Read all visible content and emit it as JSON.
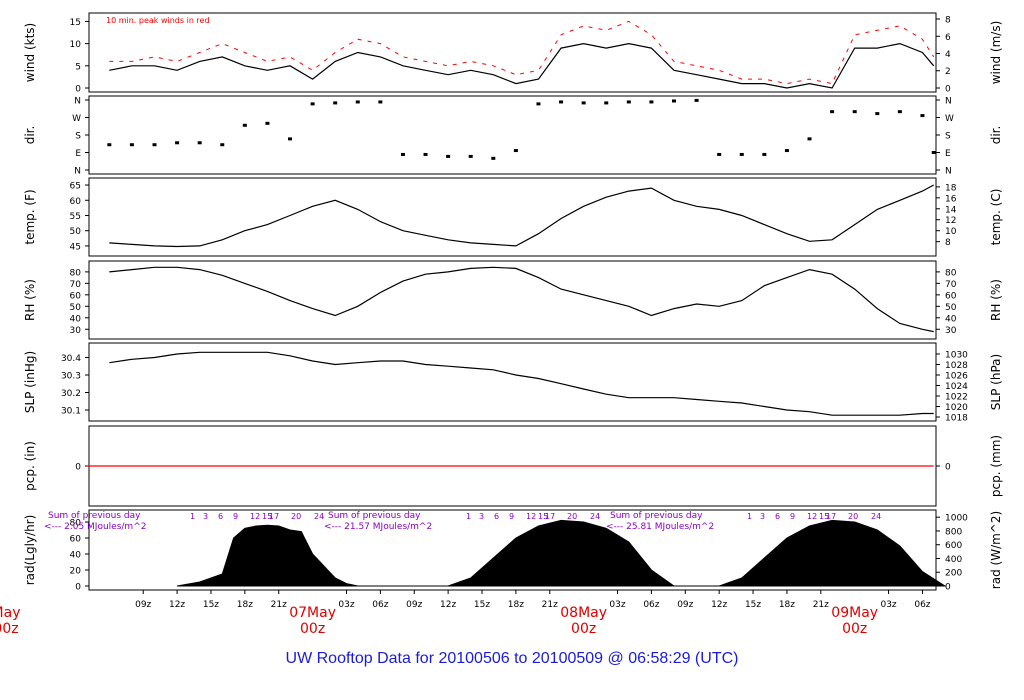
{
  "colors": {
    "axis": "#000000",
    "peak": "#ff0000",
    "pcp_line": "#ff0000",
    "annotation": "#8a00c8",
    "date_label": "#e00000",
    "title": "#1b1bd8"
  },
  "footer_title": "UW Rooftop Data for 20100506  to  20100509 @ 06:58:29  (UTC)",
  "chart_data": [
    {
      "type": "line",
      "ylabel": "wind (kts)",
      "ylabel_right": "wind (m/s)",
      "ylim": [
        0,
        16
      ],
      "yticks": [
        0,
        5,
        10,
        15
      ],
      "yticks_right": [
        {
          "label": "0",
          "value": 0
        },
        {
          "label": "2",
          "value": 3.89
        },
        {
          "label": "4",
          "value": 7.78
        },
        {
          "label": "6",
          "value": 11.66
        },
        {
          "label": "8",
          "value": 15.55
        }
      ],
      "annotation": "10 min. peak winds in red",
      "x_hours": [
        6,
        8,
        10,
        12,
        14,
        16,
        18,
        20,
        22,
        24,
        26,
        28,
        30,
        32,
        34,
        36,
        38,
        40,
        42,
        44,
        46,
        48,
        50,
        52,
        54,
        56,
        58,
        60,
        62,
        64,
        66,
        68,
        70,
        72,
        74,
        76,
        78,
        79
      ],
      "series": [
        {
          "values": [
            4,
            5,
            5,
            4,
            6,
            7,
            5,
            4,
            5,
            2,
            6,
            8,
            7,
            5,
            4,
            3,
            4,
            3,
            1,
            2,
            9,
            10,
            9,
            10,
            9,
            4,
            3,
            2,
            1,
            1,
            0,
            1,
            0,
            9,
            9,
            10,
            8,
            5
          ]
        },
        {
          "values": [
            6,
            6,
            7,
            6,
            8,
            10,
            8,
            6,
            7,
            4,
            8,
            11,
            10,
            7,
            6,
            5,
            6,
            5,
            3,
            4,
            12,
            14,
            13,
            15,
            12,
            6,
            5,
            4,
            2,
            2,
            1,
            2,
            1,
            12,
            13,
            14,
            11,
            7
          ]
        }
      ]
    },
    {
      "type": "scatter",
      "ylabel": "dir.",
      "ylabel_right": "dir.",
      "ylim": [
        0,
        360
      ],
      "yticks": [
        {
          "label": "N",
          "value": 0
        },
        {
          "label": "E",
          "value": 90
        },
        {
          "label": "S",
          "value": 180
        },
        {
          "label": "W",
          "value": 270
        },
        {
          "label": "N",
          "value": 360
        }
      ],
      "yticks_right": [
        {
          "label": "N",
          "value": 0
        },
        {
          "label": "E",
          "value": 90
        },
        {
          "label": "S",
          "value": 180
        },
        {
          "label": "W",
          "value": 270
        },
        {
          "label": "N",
          "value": 360
        }
      ],
      "x_hours": [
        6,
        8,
        10,
        12,
        14,
        16,
        18,
        20,
        22,
        24,
        26,
        28,
        30,
        32,
        34,
        36,
        38,
        40,
        42,
        44,
        46,
        48,
        50,
        52,
        54,
        56,
        58,
        60,
        62,
        64,
        66,
        68,
        70,
        72,
        74,
        76,
        78,
        79
      ],
      "series": [
        {
          "values": [
            130,
            130,
            130,
            140,
            140,
            130,
            230,
            240,
            160,
            340,
            345,
            350,
            350,
            80,
            80,
            70,
            70,
            60,
            100,
            340,
            350,
            345,
            345,
            350,
            350,
            355,
            358,
            80,
            80,
            80,
            100,
            160,
            300,
            300,
            290,
            300,
            280,
            90
          ]
        }
      ]
    },
    {
      "type": "line",
      "ylabel": "temp. (F)",
      "ylabel_right": "temp. (C)",
      "ylim": [
        43,
        66
      ],
      "yticks": [
        45,
        50,
        55,
        60,
        65
      ],
      "yticks_right": [
        {
          "label": "8",
          "value": 46.4
        },
        {
          "label": "10",
          "value": 50
        },
        {
          "label": "12",
          "value": 53.6
        },
        {
          "label": "14",
          "value": 57.2
        },
        {
          "label": "16",
          "value": 60.8
        },
        {
          "label": "18",
          "value": 64.4
        }
      ],
      "x_hours": [
        6,
        8,
        10,
        12,
        14,
        16,
        18,
        20,
        22,
        24,
        26,
        28,
        30,
        32,
        34,
        36,
        38,
        40,
        42,
        44,
        46,
        48,
        50,
        52,
        54,
        56,
        58,
        60,
        62,
        64,
        66,
        68,
        70,
        72,
        74,
        76,
        78,
        79
      ],
      "series": [
        {
          "values": [
            46,
            45.5,
            45,
            44.8,
            45,
            47,
            50,
            52,
            55,
            58,
            60,
            57,
            53,
            50,
            48.5,
            47,
            46,
            45.5,
            45,
            49,
            54,
            58,
            61,
            63,
            64,
            60,
            58,
            57,
            55,
            52,
            49,
            46.5,
            47,
            52,
            57,
            60,
            63,
            65
          ]
        }
      ]
    },
    {
      "type": "line",
      "ylabel": "RH (%)",
      "ylabel_right": "RH (%)",
      "ylim": [
        25,
        86
      ],
      "yticks": [
        30,
        40,
        50,
        60,
        70,
        80
      ],
      "yticks_right": [
        {
          "label": "30",
          "value": 30
        },
        {
          "label": "40",
          "value": 40
        },
        {
          "label": "50",
          "value": 50
        },
        {
          "label": "60",
          "value": 60
        },
        {
          "label": "70",
          "value": 70
        },
        {
          "label": "80",
          "value": 80
        }
      ],
      "x_hours": [
        6,
        8,
        10,
        12,
        14,
        16,
        18,
        20,
        22,
        24,
        26,
        28,
        30,
        32,
        34,
        36,
        38,
        40,
        42,
        44,
        46,
        48,
        50,
        52,
        54,
        56,
        58,
        60,
        62,
        64,
        66,
        68,
        70,
        72,
        74,
        76,
        78,
        79
      ],
      "series": [
        {
          "values": [
            80,
            82,
            84,
            84,
            82,
            77,
            70,
            63,
            55,
            48,
            42,
            50,
            62,
            72,
            78,
            80,
            83,
            84,
            83,
            75,
            65,
            60,
            55,
            50,
            42,
            48,
            52,
            50,
            55,
            68,
            75,
            82,
            78,
            65,
            48,
            35,
            30,
            28
          ]
        }
      ]
    },
    {
      "type": "line",
      "ylabel": "SLP (inHg)",
      "ylabel_right": "SLP (hPa)",
      "ylim": [
        30.06,
        30.46
      ],
      "yticks": [
        30.1,
        30.2,
        30.3,
        30.4
      ],
      "yticks_right": [
        {
          "label": "1018",
          "value": 30.06
        },
        {
          "label": "1020",
          "value": 30.12
        },
        {
          "label": "1022",
          "value": 30.18
        },
        {
          "label": "1024",
          "value": 30.24
        },
        {
          "label": "1026",
          "value": 30.3
        },
        {
          "label": "1028",
          "value": 30.36
        },
        {
          "label": "1030",
          "value": 30.42
        }
      ],
      "x_hours": [
        6,
        8,
        10,
        12,
        14,
        16,
        18,
        20,
        22,
        24,
        26,
        28,
        30,
        32,
        34,
        36,
        38,
        40,
        42,
        44,
        46,
        48,
        50,
        52,
        54,
        56,
        58,
        60,
        62,
        64,
        66,
        68,
        70,
        72,
        74,
        76,
        78,
        79
      ],
      "series": [
        {
          "values": [
            30.37,
            30.39,
            30.4,
            30.42,
            30.43,
            30.43,
            30.43,
            30.43,
            30.41,
            30.38,
            30.36,
            30.37,
            30.38,
            30.38,
            30.36,
            30.35,
            30.34,
            30.33,
            30.3,
            30.28,
            30.25,
            30.22,
            30.19,
            30.17,
            30.17,
            30.17,
            30.16,
            30.15,
            30.14,
            30.12,
            30.1,
            30.09,
            30.07,
            30.07,
            30.07,
            30.07,
            30.08,
            30.08
          ]
        }
      ]
    },
    {
      "type": "line",
      "ylabel": "pcp. (in)",
      "ylabel_right": "pcp. (mm)",
      "ylim": [
        -1,
        1
      ],
      "yticks": [
        0
      ],
      "yticks_right": [
        {
          "label": "0",
          "value": 0
        }
      ],
      "x_hours": [
        4,
        79
      ],
      "series": [
        {
          "values": [
            0,
            0
          ]
        }
      ]
    },
    {
      "type": "area",
      "ylabel": "rad(Lgly/hr)",
      "ylabel_right": "rad (W/m^2)",
      "ylim": [
        0,
        90
      ],
      "yticks": [
        0,
        20,
        40,
        60,
        80
      ],
      "yticks_right": [
        {
          "label": "0",
          "value": 0
        },
        {
          "label": "200",
          "value": 17.2
        },
        {
          "label": "400",
          "value": 34.4
        },
        {
          "label": "600",
          "value": 51.6
        },
        {
          "label": "800",
          "value": 68.8
        },
        {
          "label": "1000",
          "value": 86
        }
      ],
      "annotations": [
        {
          "line1": "Sum of previous day",
          "line2": "<--- 2.05 MJoules/m^2"
        },
        {
          "line1": "Sum of previous day",
          "line2": "<--- 21.57 MJoules/m^2"
        },
        {
          "line1": "Sum of previous day",
          "line2": "<--- 25.81 MJoules/m^2"
        }
      ],
      "hour_markers": [
        "1",
        "3",
        "6",
        "9",
        "12",
        "15",
        "17",
        "20",
        "24"
      ],
      "x_hours": [
        12,
        14,
        16,
        17,
        18,
        19,
        20,
        21,
        22,
        23,
        24,
        25,
        26,
        27,
        28,
        36,
        38,
        40,
        42,
        44,
        46,
        48,
        50,
        52,
        54,
        56,
        60,
        62,
        64,
        66,
        68,
        70,
        72,
        74,
        76,
        78,
        80
      ],
      "series": [
        {
          "values": [
            0,
            5,
            15,
            60,
            72,
            75,
            76,
            75,
            70,
            68,
            40,
            25,
            10,
            3,
            0,
            0,
            10,
            35,
            60,
            75,
            82,
            80,
            72,
            55,
            20,
            0,
            0,
            10,
            35,
            60,
            75,
            82,
            80,
            70,
            50,
            18,
            0
          ]
        }
      ]
    }
  ],
  "x_axis": {
    "hour_ticks": [
      "09z",
      "12z",
      "15z",
      "18z",
      "21z",
      "03z",
      "06z",
      "09z",
      "12z",
      "15z",
      "18z",
      "21z",
      "03z",
      "06z",
      "09z",
      "12z",
      "15z",
      "18z",
      "21z",
      "03z",
      "06z"
    ],
    "day_labels": [
      {
        "line1": "May",
        "line2": "00z"
      },
      {
        "line1": "07May",
        "line2": "00z"
      },
      {
        "line1": "08May",
        "line2": "00z"
      },
      {
        "line1": "09May",
        "line2": "00z"
      }
    ]
  }
}
